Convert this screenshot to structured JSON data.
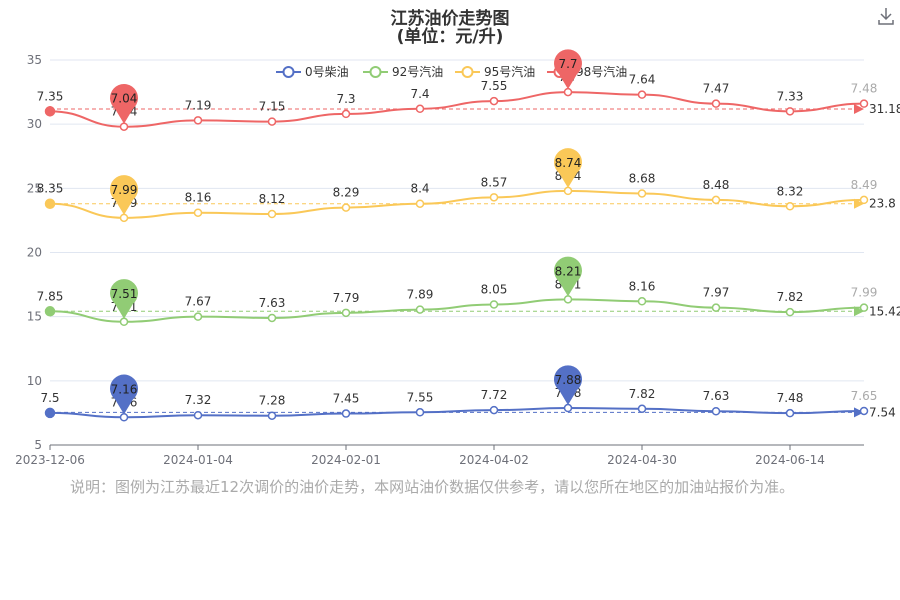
{
  "colors": {
    "diesel0": "#5470c6",
    "gas92": "#91cc75",
    "gas95": "#fac858",
    "gas98": "#ee6666",
    "axis": "#6e7079",
    "grid": "#e0e6f1",
    "note": "#aaaaaa"
  },
  "header": {
    "title": "江苏油价走势图",
    "subtitle": "(单位：元/升)",
    "download_icon": "download-icon"
  },
  "note": "说明：图例为江苏最近12次调价的油价走势，本网站油价数据仅供参考，请以您所在地区的加油站报价为准。",
  "chart_data": {
    "type": "line",
    "title": "江苏油价走势图",
    "subtitle": "(单位：元/升)",
    "x_ticks": [
      "2023-12-06",
      "2024-01-04",
      "2024-02-01",
      "2024-04-02",
      "2024-04-30",
      "2024-06-14"
    ],
    "y_ticks": [
      5,
      10,
      15,
      20,
      25,
      30,
      35
    ],
    "ylim": [
      5,
      35
    ],
    "grid": true,
    "legend_position": "top-center",
    "series": [
      {
        "name": "0号柴油",
        "key": "diesel0",
        "values": [
          7.5,
          7.16,
          7.32,
          7.28,
          7.45,
          7.55,
          7.72,
          7.88,
          7.82,
          7.63,
          7.48,
          7.65
        ],
        "y": [
          7.5,
          7.16,
          7.32,
          7.28,
          7.45,
          7.55,
          7.72,
          7.88,
          7.82,
          7.63,
          7.48,
          7.65
        ],
        "max_label": "7.88",
        "min_label": "7.16",
        "avg": 7.54,
        "avg_label": "7.54"
      },
      {
        "name": "92号汽油",
        "key": "gas92",
        "values": [
          7.85,
          7.51,
          7.67,
          7.63,
          7.79,
          7.89,
          8.05,
          8.21,
          8.16,
          7.97,
          7.82,
          7.99
        ],
        "y": [
          15.42,
          14.6,
          15.0,
          14.9,
          15.3,
          15.55,
          15.95,
          16.35,
          16.2,
          15.7,
          15.35,
          15.7
        ],
        "max_label": "8.21",
        "min_label": "7.51",
        "avg": 15.42,
        "avg_label": "15.42"
      },
      {
        "name": "95号汽油",
        "key": "gas95",
        "values": [
          8.35,
          7.99,
          8.16,
          8.12,
          8.29,
          8.4,
          8.57,
          8.74,
          8.68,
          8.48,
          8.32,
          8.49
        ],
        "y": [
          23.8,
          22.7,
          23.1,
          23.0,
          23.5,
          23.8,
          24.3,
          24.8,
          24.6,
          24.1,
          23.6,
          24.1
        ],
        "max_label": "8.74",
        "min_label": "7.99",
        "avg": 23.8,
        "avg_label": "23.8"
      },
      {
        "name": "98号汽油",
        "key": "gas98",
        "values": [
          7.35,
          7.04,
          7.19,
          7.15,
          7.3,
          7.4,
          7.55,
          7.7,
          7.64,
          7.47,
          7.33,
          7.48
        ],
        "y": [
          31.0,
          29.8,
          30.3,
          30.2,
          30.8,
          31.2,
          31.8,
          32.5,
          32.3,
          31.6,
          31.0,
          31.6
        ],
        "max_label": "7.7",
        "min_label": "7.04",
        "avg": 31.18,
        "avg_label": "31.18"
      }
    ]
  }
}
